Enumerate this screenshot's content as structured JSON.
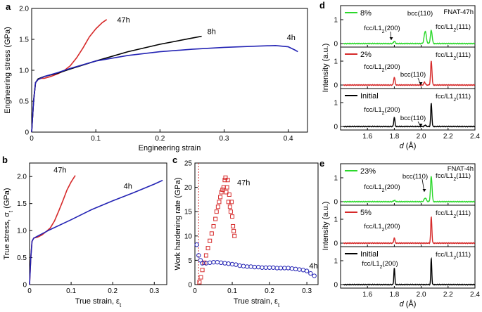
{
  "colors": {
    "h47": "#d62a2a",
    "h8": "#000000",
    "h4": "#2323b4",
    "pct8": "#2bd82b",
    "pct2": "#d62a2a",
    "init": "#000000"
  },
  "chart_data": [
    {
      "panel": "a",
      "type": "line",
      "xlabel": "Engineering strain",
      "ylabel": "Engineering stress (GPa)",
      "xlim": [
        0,
        0.43
      ],
      "ylim": [
        0,
        2.0
      ],
      "xticks": [
        "0",
        "0.1",
        "0.2",
        "0.3",
        "0.4"
      ],
      "yticks": [
        "0",
        "0.5",
        "1.0",
        "1.5",
        "2.0"
      ],
      "series": [
        {
          "name": "47h",
          "color": "#d62a2a",
          "x": [
            0,
            0.003,
            0.006,
            0.01,
            0.015,
            0.02,
            0.03,
            0.04,
            0.05,
            0.06,
            0.07,
            0.08,
            0.09,
            0.1,
            0.11,
            0.117
          ],
          "y": [
            0,
            0.5,
            0.8,
            0.85,
            0.87,
            0.87,
            0.9,
            0.94,
            0.99,
            1.07,
            1.2,
            1.36,
            1.54,
            1.67,
            1.77,
            1.82
          ]
        },
        {
          "name": "8h",
          "color": "#000000",
          "x": [
            0,
            0.003,
            0.006,
            0.01,
            0.02,
            0.04,
            0.06,
            0.1,
            0.15,
            0.2,
            0.25,
            0.265
          ],
          "y": [
            0,
            0.5,
            0.8,
            0.86,
            0.9,
            0.95,
            1.02,
            1.15,
            1.3,
            1.42,
            1.52,
            1.55
          ]
        },
        {
          "name": "4h",
          "color": "#2323b4",
          "x": [
            0,
            0.003,
            0.006,
            0.01,
            0.02,
            0.04,
            0.06,
            0.1,
            0.15,
            0.2,
            0.25,
            0.3,
            0.35,
            0.38,
            0.4,
            0.41,
            0.415
          ],
          "y": [
            0,
            0.5,
            0.8,
            0.85,
            0.9,
            0.96,
            1.03,
            1.15,
            1.24,
            1.3,
            1.34,
            1.37,
            1.39,
            1.4,
            1.38,
            1.33,
            1.3
          ]
        }
      ]
    },
    {
      "panel": "b",
      "type": "line",
      "xlabel": "True strain, ε_t",
      "ylabel": "True stress, σ_t (GPa)",
      "xlim": [
        0,
        0.33
      ],
      "ylim": [
        0,
        2.25
      ],
      "xticks": [
        "0",
        "0.1",
        "0.2",
        "0.3"
      ],
      "yticks": [
        "0",
        "0.5",
        "1.0",
        "1.5",
        "2.0"
      ],
      "series": [
        {
          "name": "47h",
          "color": "#d62a2a",
          "x": [
            0,
            0.003,
            0.006,
            0.01,
            0.02,
            0.03,
            0.04,
            0.05,
            0.06,
            0.07,
            0.08,
            0.09,
            0.1,
            0.11
          ],
          "y": [
            0,
            0.5,
            0.8,
            0.86,
            0.88,
            0.92,
            0.98,
            1.05,
            1.18,
            1.36,
            1.55,
            1.75,
            1.9,
            2.02
          ]
        },
        {
          "name": "4h",
          "color": "#2323b4",
          "x": [
            0,
            0.003,
            0.006,
            0.01,
            0.02,
            0.05,
            0.1,
            0.15,
            0.2,
            0.25,
            0.3,
            0.32
          ],
          "y": [
            0,
            0.5,
            0.8,
            0.86,
            0.9,
            1.02,
            1.2,
            1.39,
            1.55,
            1.7,
            1.86,
            1.93
          ]
        }
      ]
    },
    {
      "panel": "c",
      "type": "scatter",
      "xlabel": "True strain, ε_t",
      "ylabel": "Work hardening rate (GPa)",
      "xlim": [
        0,
        0.33
      ],
      "ylim": [
        0,
        25
      ],
      "xticks": [
        "0",
        "0.1",
        "0.2",
        "0.3"
      ],
      "yticks": [
        "0",
        "5",
        "10",
        "15",
        "20",
        "25"
      ],
      "series": [
        {
          "name": "47h",
          "color": "#d62a2a",
          "marker": "square",
          "x": [
            0.012,
            0.016,
            0.02,
            0.025,
            0.03,
            0.035,
            0.04,
            0.045,
            0.05,
            0.055,
            0.058,
            0.062,
            0.065,
            0.068,
            0.071,
            0.074,
            0.077,
            0.08,
            0.082,
            0.084,
            0.086,
            0.088,
            0.09,
            0.092,
            0.094,
            0.096,
            0.098,
            0.1,
            0.102,
            0.104,
            0.106
          ],
          "y": [
            0.5,
            1.5,
            3,
            4.5,
            6,
            7.5,
            9,
            10.5,
            12,
            13.5,
            15,
            16,
            17,
            18,
            19,
            19.5,
            20,
            21.5,
            22,
            19,
            20,
            21.5,
            17,
            18.5,
            16,
            15,
            17,
            14,
            12,
            11,
            10
          ]
        },
        {
          "name": "4h",
          "color": "#2323b4",
          "marker": "circle",
          "x": [
            0.005,
            0.01,
            0.015,
            0.02,
            0.03,
            0.04,
            0.05,
            0.06,
            0.07,
            0.08,
            0.09,
            0.1,
            0.11,
            0.12,
            0.13,
            0.14,
            0.15,
            0.16,
            0.17,
            0.18,
            0.19,
            0.2,
            0.21,
            0.22,
            0.23,
            0.24,
            0.25,
            0.26,
            0.27,
            0.28,
            0.29,
            0.3,
            0.31,
            0.32
          ],
          "y": [
            8.2,
            6.0,
            5.0,
            4.4,
            4.4,
            4.5,
            4.6,
            4.6,
            4.5,
            4.4,
            4.3,
            4.2,
            4.1,
            3.9,
            3.8,
            3.7,
            3.7,
            3.6,
            3.6,
            3.5,
            3.5,
            3.5,
            3.5,
            3.4,
            3.4,
            3.4,
            3.4,
            3.3,
            3.2,
            3.1,
            3.0,
            2.8,
            2.3,
            1.8
          ]
        }
      ]
    },
    {
      "panel": "d",
      "type": "line",
      "title": "FNAT-47h",
      "xlabel": "d (Å)",
      "ylabel": "Intensity (a.u.)",
      "xlim": [
        1.4,
        2.4
      ],
      "xticks": [
        "1.6",
        "1.8",
        "2.0",
        "2.2",
        "2.4"
      ],
      "yticks": [
        "0",
        "1"
      ],
      "subplots": [
        {
          "label": "8%",
          "color": "#2bd82b",
          "peaks": [
            {
              "d": 1.8,
              "h": 0.1,
              "w": 0.008
            },
            {
              "d": 2.03,
              "h": 0.52,
              "w": 0.011
            },
            {
              "d": 2.075,
              "h": 0.55,
              "w": 0.009
            }
          ],
          "annotations": [
            "fcc/L1₂(200)",
            "bcc(110)",
            "fcc/L1₂(111)",
            "FNAT-47h"
          ]
        },
        {
          "label": "2%",
          "color": "#d62a2a",
          "peaks": [
            {
              "d": 1.8,
              "h": 0.32,
              "w": 0.007
            },
            {
              "d": 2.025,
              "h": 0.12,
              "w": 0.008
            },
            {
              "d": 2.075,
              "h": 1.0,
              "w": 0.007
            }
          ],
          "annotations": [
            "fcc/L1₂(200)",
            "bcc(110)",
            "fcc/L1₂(111)"
          ]
        },
        {
          "label": "Initial",
          "color": "#000000",
          "peaks": [
            {
              "d": 1.8,
              "h": 0.38,
              "w": 0.006
            },
            {
              "d": 2.03,
              "h": 0.06,
              "w": 0.007
            },
            {
              "d": 2.075,
              "h": 0.97,
              "w": 0.006
            }
          ],
          "annotations": [
            "fcc/L1₂(200)",
            "bcc(110)",
            "fcc/L1₂(111)"
          ]
        }
      ]
    },
    {
      "panel": "e",
      "type": "line",
      "title": "FNAT-4h",
      "xlabel": "d (Å)",
      "ylabel": "Intensity (a.u.)",
      "xlim": [
        1.4,
        2.4
      ],
      "xticks": [
        "1.6",
        "1.8",
        "2.0",
        "2.2",
        "2.4"
      ],
      "yticks": [
        "0",
        "1"
      ],
      "subplots": [
        {
          "label": "23%",
          "color": "#2bd82b",
          "peaks": [
            {
              "d": 1.8,
              "h": 0.05,
              "w": 0.01
            },
            {
              "d": 2.03,
              "h": 0.15,
              "w": 0.012
            },
            {
              "d": 2.075,
              "h": 1.05,
              "w": 0.008
            }
          ],
          "annotations": [
            "fcc/L1₂(200)",
            "bcc(110)",
            "fcc/L1₂(111)",
            "FNAT-4h"
          ]
        },
        {
          "label": "5%",
          "color": "#d62a2a",
          "peaks": [
            {
              "d": 1.8,
              "h": 0.22,
              "w": 0.006
            },
            {
              "d": 2.075,
              "h": 1.1,
              "w": 0.006
            }
          ],
          "annotations": [
            "fcc/L1₂(200)",
            "fcc/L1₂(111)"
          ]
        },
        {
          "label": "Initial",
          "color": "#000000",
          "peaks": [
            {
              "d": 1.8,
              "h": 0.7,
              "w": 0.005
            },
            {
              "d": 2.075,
              "h": 1.1,
              "w": 0.005
            }
          ],
          "annotations": [
            "fcc/L1₂(200)",
            "fcc/L1₂(111)"
          ]
        }
      ]
    }
  ]
}
